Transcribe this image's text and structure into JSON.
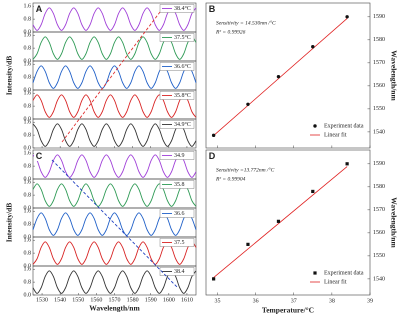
{
  "chart_data": [
    {
      "type": "line",
      "panel_label": "A",
      "ylabel": "Intensity/dB",
      "x": [
        1525,
        1527.25,
        1529.5,
        1531.75,
        1534,
        1536.25,
        1538.5,
        1540.75,
        1543,
        1545.25,
        1547.5,
        1549.75,
        1552,
        1554.25,
        1556.5,
        1558.75,
        1561,
        1563.25,
        1565.5,
        1567.75,
        1570,
        1572.25,
        1574.5,
        1576.75,
        1579,
        1581.25,
        1583.5,
        1585.75,
        1588,
        1590.25,
        1592.5,
        1594.75,
        1597,
        1599.25,
        1601.5,
        1603.75,
        1606,
        1608.25,
        1610.5,
        1612.75,
        1615
      ],
      "xlim": [
        1525,
        1615
      ],
      "xticks": [
        1530,
        1540,
        1550,
        1560,
        1570,
        1580,
        1590,
        1600,
        1610
      ],
      "ylim": [
        0,
        1.8
      ],
      "yticks": [
        {
          "value": 0,
          "label": "0.0"
        },
        {
          "value": 0.8,
          "label": "0.8"
        },
        {
          "value": 1.6,
          "label": "1.6"
        }
      ],
      "series": [
        {
          "name": "38.4°C",
          "color": "#a040d8",
          "values": [
            0.45,
            0.1,
            0.45,
            1.15,
            1.5,
            1.15,
            0.45,
            0.1,
            0.45,
            1.15,
            1.5,
            1.15,
            0.45,
            0.1,
            0.45,
            1.15,
            1.5,
            1.15,
            0.45,
            0.1,
            0.45,
            1.15,
            1.5,
            1.15,
            0.45,
            0.1,
            0.45,
            1.15,
            1.5,
            1.15,
            0.45,
            0.1,
            0.45,
            1.15,
            1.5,
            1.15,
            0.45,
            0.1,
            0.45,
            1.15,
            1.5
          ]
        },
        {
          "name": "37.5°C",
          "color": "#2e9a55",
          "values": [
            0.1,
            0.45,
            1.15,
            1.5,
            1.15,
            0.45,
            0.1,
            0.45,
            1.15,
            1.5,
            1.15,
            0.45,
            0.1,
            0.45,
            1.15,
            1.5,
            1.15,
            0.45,
            0.1,
            0.45,
            1.15,
            1.5,
            1.15,
            0.45,
            0.1,
            0.45,
            1.15,
            1.5,
            1.15,
            0.45,
            0.1,
            0.45,
            1.15,
            1.5,
            1.15,
            0.45,
            0.1,
            0.45,
            1.15,
            1.5,
            1.15
          ]
        },
        {
          "name": "36.6°C",
          "color": "#2060c8",
          "values": [
            0.45,
            1.15,
            1.5,
            1.15,
            0.45,
            0.1,
            0.45,
            1.15,
            1.5,
            1.15,
            0.45,
            0.1,
            0.45,
            1.15,
            1.5,
            1.15,
            0.45,
            0.1,
            0.45,
            1.15,
            1.5,
            1.15,
            0.45,
            0.1,
            0.45,
            1.15,
            1.5,
            1.15,
            0.45,
            0.1,
            0.45,
            1.15,
            1.5,
            1.15,
            0.45,
            0.1,
            0.45,
            1.15,
            1.5,
            1.15,
            0.45
          ]
        },
        {
          "name": "35.8°C",
          "color": "#d82424",
          "values": [
            1.15,
            1.5,
            1.15,
            0.45,
            0.1,
            0.45,
            1.15,
            1.5,
            1.15,
            0.45,
            0.1,
            0.45,
            1.15,
            1.5,
            1.15,
            0.45,
            0.1,
            0.45,
            1.15,
            1.5,
            1.15,
            0.45,
            0.1,
            0.45,
            1.15,
            1.5,
            1.15,
            0.45,
            0.1,
            0.45,
            1.15,
            1.5,
            1.15,
            0.45,
            0.1,
            0.45,
            1.15,
            1.5,
            1.15,
            0.45,
            0.1
          ]
        },
        {
          "name": "34.9°C",
          "color": "#333333",
          "values": [
            1.5,
            1.15,
            0.45,
            0.1,
            0.45,
            1.15,
            1.5,
            1.15,
            0.45,
            0.1,
            0.45,
            1.15,
            1.5,
            1.15,
            0.45,
            0.1,
            0.45,
            1.15,
            1.5,
            1.15,
            0.45,
            0.1,
            0.45,
            1.15,
            1.5,
            1.15,
            0.45,
            0.1,
            0.45,
            1.15,
            1.5,
            1.15,
            0.45,
            0.1,
            0.45,
            1.15,
            1.5,
            1.15,
            0.45,
            0.1,
            0.45
          ]
        }
      ]
    },
    {
      "type": "scatter",
      "panel_label": "B",
      "ylabel": "Wavelength/nm",
      "xlim": [
        34.7,
        39
      ],
      "xticks": [
        35,
        36,
        37,
        38,
        39
      ],
      "ylim": [
        1533,
        1596
      ],
      "yticks": [
        1540,
        1550,
        1560,
        1570,
        1580,
        1590
      ],
      "annotations": [
        "Sensitivity = 14.530nm /°C",
        "R² = 0.99926"
      ],
      "legend": "lower right",
      "series": [
        {
          "name": "Experiment data",
          "color": "#111111",
          "marker": "circle",
          "x": [
            34.9,
            35.8,
            36.6,
            37.5,
            38.4
          ],
          "values": [
            1538.5,
            1552,
            1564,
            1577,
            1590
          ]
        },
        {
          "name": "Linear fit",
          "color": "#e02020",
          "x": [
            34.9,
            38.4
          ],
          "values": [
            1538.4,
            1589.3
          ]
        }
      ]
    },
    {
      "type": "line",
      "panel_label": "C",
      "ylabel": "Intensity/dB",
      "xlabel": "Wavelength/nm",
      "x": [
        1525,
        1527.25,
        1529.5,
        1531.75,
        1534,
        1536.25,
        1538.5,
        1540.75,
        1543,
        1545.25,
        1547.5,
        1549.75,
        1552,
        1554.25,
        1556.5,
        1558.75,
        1561,
        1563.25,
        1565.5,
        1567.75,
        1570,
        1572.25,
        1574.5,
        1576.75,
        1579,
        1581.25,
        1583.5,
        1585.75,
        1588,
        1590.25,
        1592.5,
        1594.75,
        1597,
        1599.25,
        1601.5,
        1603.75,
        1606,
        1608.25,
        1610.5,
        1612.75,
        1615
      ],
      "xlim": [
        1525,
        1615
      ],
      "xticks": [
        1530,
        1540,
        1550,
        1560,
        1570,
        1580,
        1590,
        1600,
        1610
      ],
      "ylim": [
        0,
        1.8
      ],
      "yticks": [
        {
          "value": 0,
          "label": "0.0"
        },
        {
          "value": 0.8,
          "label": "0.8"
        },
        {
          "value": 1.6,
          "label": "1.6"
        }
      ],
      "series": [
        {
          "name": "34.9",
          "color": "#a040d8",
          "values": [
            1.5,
            1.15,
            0.45,
            0.1,
            0.45,
            1.15,
            1.5,
            1.15,
            0.45,
            0.1,
            0.45,
            1.15,
            1.5,
            1.15,
            0.45,
            0.1,
            0.45,
            1.15,
            1.5,
            1.15,
            0.45,
            0.1,
            0.45,
            1.15,
            1.5,
            1.15,
            0.45,
            0.1,
            0.45,
            1.15,
            1.5,
            1.15,
            0.45,
            0.1,
            0.45,
            1.15,
            1.5,
            1.15,
            0.45,
            0.1,
            0.45
          ]
        },
        {
          "name": "35.8",
          "color": "#2e9a55",
          "values": [
            1.15,
            1.5,
            1.15,
            0.45,
            0.1,
            0.45,
            1.15,
            1.5,
            1.15,
            0.45,
            0.1,
            0.45,
            1.15,
            1.5,
            1.15,
            0.45,
            0.1,
            0.45,
            1.15,
            1.5,
            1.15,
            0.45,
            0.1,
            0.45,
            1.15,
            1.5,
            1.15,
            0.45,
            0.1,
            0.45,
            1.15,
            1.5,
            1.15,
            0.45,
            0.1,
            0.45,
            1.15,
            1.5,
            1.15,
            0.45,
            0.1
          ]
        },
        {
          "name": "36.6",
          "color": "#2060c8",
          "values": [
            0.45,
            1.15,
            1.5,
            1.15,
            0.45,
            0.1,
            0.45,
            1.15,
            1.5,
            1.15,
            0.45,
            0.1,
            0.45,
            1.15,
            1.5,
            1.15,
            0.45,
            0.1,
            0.45,
            1.15,
            1.5,
            1.15,
            0.45,
            0.1,
            0.45,
            1.15,
            1.5,
            1.15,
            0.45,
            0.1,
            0.45,
            1.15,
            1.5,
            1.15,
            0.45,
            0.1,
            0.45,
            1.15,
            1.5,
            1.15,
            0.45
          ]
        },
        {
          "name": "37.5",
          "color": "#d82424",
          "values": [
            0.1,
            0.45,
            1.15,
            1.5,
            1.15,
            0.45,
            0.1,
            0.45,
            1.15,
            1.5,
            1.15,
            0.45,
            0.1,
            0.45,
            1.15,
            1.5,
            1.15,
            0.45,
            0.1,
            0.45,
            1.15,
            1.5,
            1.15,
            0.45,
            0.1,
            0.45,
            1.15,
            1.5,
            1.15,
            0.45,
            0.1,
            0.45,
            1.15,
            1.5,
            1.15,
            0.45,
            0.1,
            0.45,
            1.15,
            1.5,
            1.15
          ]
        },
        {
          "name": "38.4",
          "color": "#333333",
          "values": [
            0.45,
            0.1,
            0.45,
            1.15,
            1.5,
            1.15,
            0.45,
            0.1,
            0.45,
            1.15,
            1.5,
            1.15,
            0.45,
            0.1,
            0.45,
            1.15,
            1.5,
            1.15,
            0.45,
            0.1,
            0.45,
            1.15,
            1.5,
            1.15,
            0.45,
            0.1,
            0.45,
            1.15,
            1.5,
            1.15,
            0.45,
            0.1,
            0.45,
            1.15,
            1.5,
            1.15,
            0.45,
            0.1,
            0.45,
            1.15,
            1.5
          ]
        }
      ]
    },
    {
      "type": "scatter",
      "panel_label": "D",
      "ylabel": "Wavelength/nm",
      "xlabel": "Temperature/°C",
      "xlim": [
        34.7,
        39
      ],
      "xticks": [
        35,
        36,
        37,
        38,
        39
      ],
      "ylim": [
        1533,
        1596
      ],
      "yticks": [
        1540,
        1550,
        1560,
        1570,
        1580,
        1590
      ],
      "annotations": [
        "Sensitivity =13.772nm /°C",
        "R² = 0.99904"
      ],
      "legend": "lower right",
      "series": [
        {
          "name": "Experiment data",
          "color": "#111111",
          "marker": "square",
          "x": [
            34.9,
            35.8,
            36.6,
            37.5,
            38.4
          ],
          "values": [
            1540,
            1555,
            1565,
            1578,
            1590
          ]
        },
        {
          "name": "Linear fit",
          "color": "#e02020",
          "x": [
            34.9,
            38.4
          ],
          "values": [
            1540.6,
            1588.8
          ]
        }
      ]
    }
  ]
}
